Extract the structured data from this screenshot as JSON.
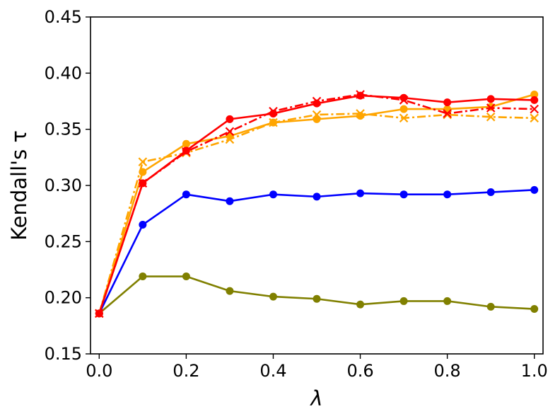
{
  "chart_data": {
    "type": "line",
    "xlabel": "λ",
    "ylabel": "Kendall's τ",
    "xlim": [
      -0.02,
      1.02
    ],
    "ylim": [
      0.15,
      0.45
    ],
    "x_ticks": [
      0.0,
      0.2,
      0.4,
      0.6,
      0.8,
      1.0
    ],
    "x_tick_labels": [
      "0.0",
      "0.2",
      "0.4",
      "0.6",
      "0.8",
      "1.0"
    ],
    "y_ticks": [
      0.15,
      0.2,
      0.25,
      0.3,
      0.35,
      0.4,
      0.45
    ],
    "y_tick_labels": [
      "0.15",
      "0.20",
      "0.25",
      "0.30",
      "0.35",
      "0.40",
      "0.45"
    ],
    "grid": false,
    "legend": "none",
    "x": [
      0.0,
      0.1,
      0.2,
      0.3,
      0.4,
      0.5,
      0.6,
      0.7,
      0.8,
      0.9,
      1.0
    ],
    "series": [
      {
        "color": "#808000",
        "linestyle": "solid",
        "marker": "circle",
        "values": [
          0.186,
          0.219,
          0.219,
          0.206,
          0.201,
          0.199,
          0.194,
          0.197,
          0.197,
          0.192,
          0.19
        ]
      },
      {
        "color": "#0000ff",
        "linestyle": "solid",
        "marker": "circle",
        "values": [
          0.186,
          0.265,
          0.292,
          0.286,
          0.292,
          0.29,
          0.293,
          0.292,
          0.292,
          0.294,
          0.296
        ]
      },
      {
        "color": "#ffa500",
        "linestyle": "dashdot",
        "marker": "x",
        "values": [
          0.186,
          0.321,
          0.329,
          0.341,
          0.356,
          0.363,
          0.364,
          0.36,
          0.363,
          0.361,
          0.36
        ]
      },
      {
        "color": "#ffa500",
        "linestyle": "solid",
        "marker": "circle",
        "values": [
          0.186,
          0.312,
          0.337,
          0.344,
          0.356,
          0.359,
          0.362,
          0.368,
          0.368,
          0.37,
          0.381
        ]
      },
      {
        "color": "#ff0000",
        "linestyle": "dashdot",
        "marker": "x",
        "values": [
          0.186,
          0.302,
          0.33,
          0.348,
          0.366,
          0.375,
          0.381,
          0.376,
          0.364,
          0.369,
          0.368
        ]
      },
      {
        "color": "#ff0000",
        "linestyle": "solid",
        "marker": "circle",
        "values": [
          0.186,
          0.302,
          0.331,
          0.359,
          0.364,
          0.373,
          0.38,
          0.378,
          0.374,
          0.377,
          0.376
        ]
      }
    ]
  }
}
